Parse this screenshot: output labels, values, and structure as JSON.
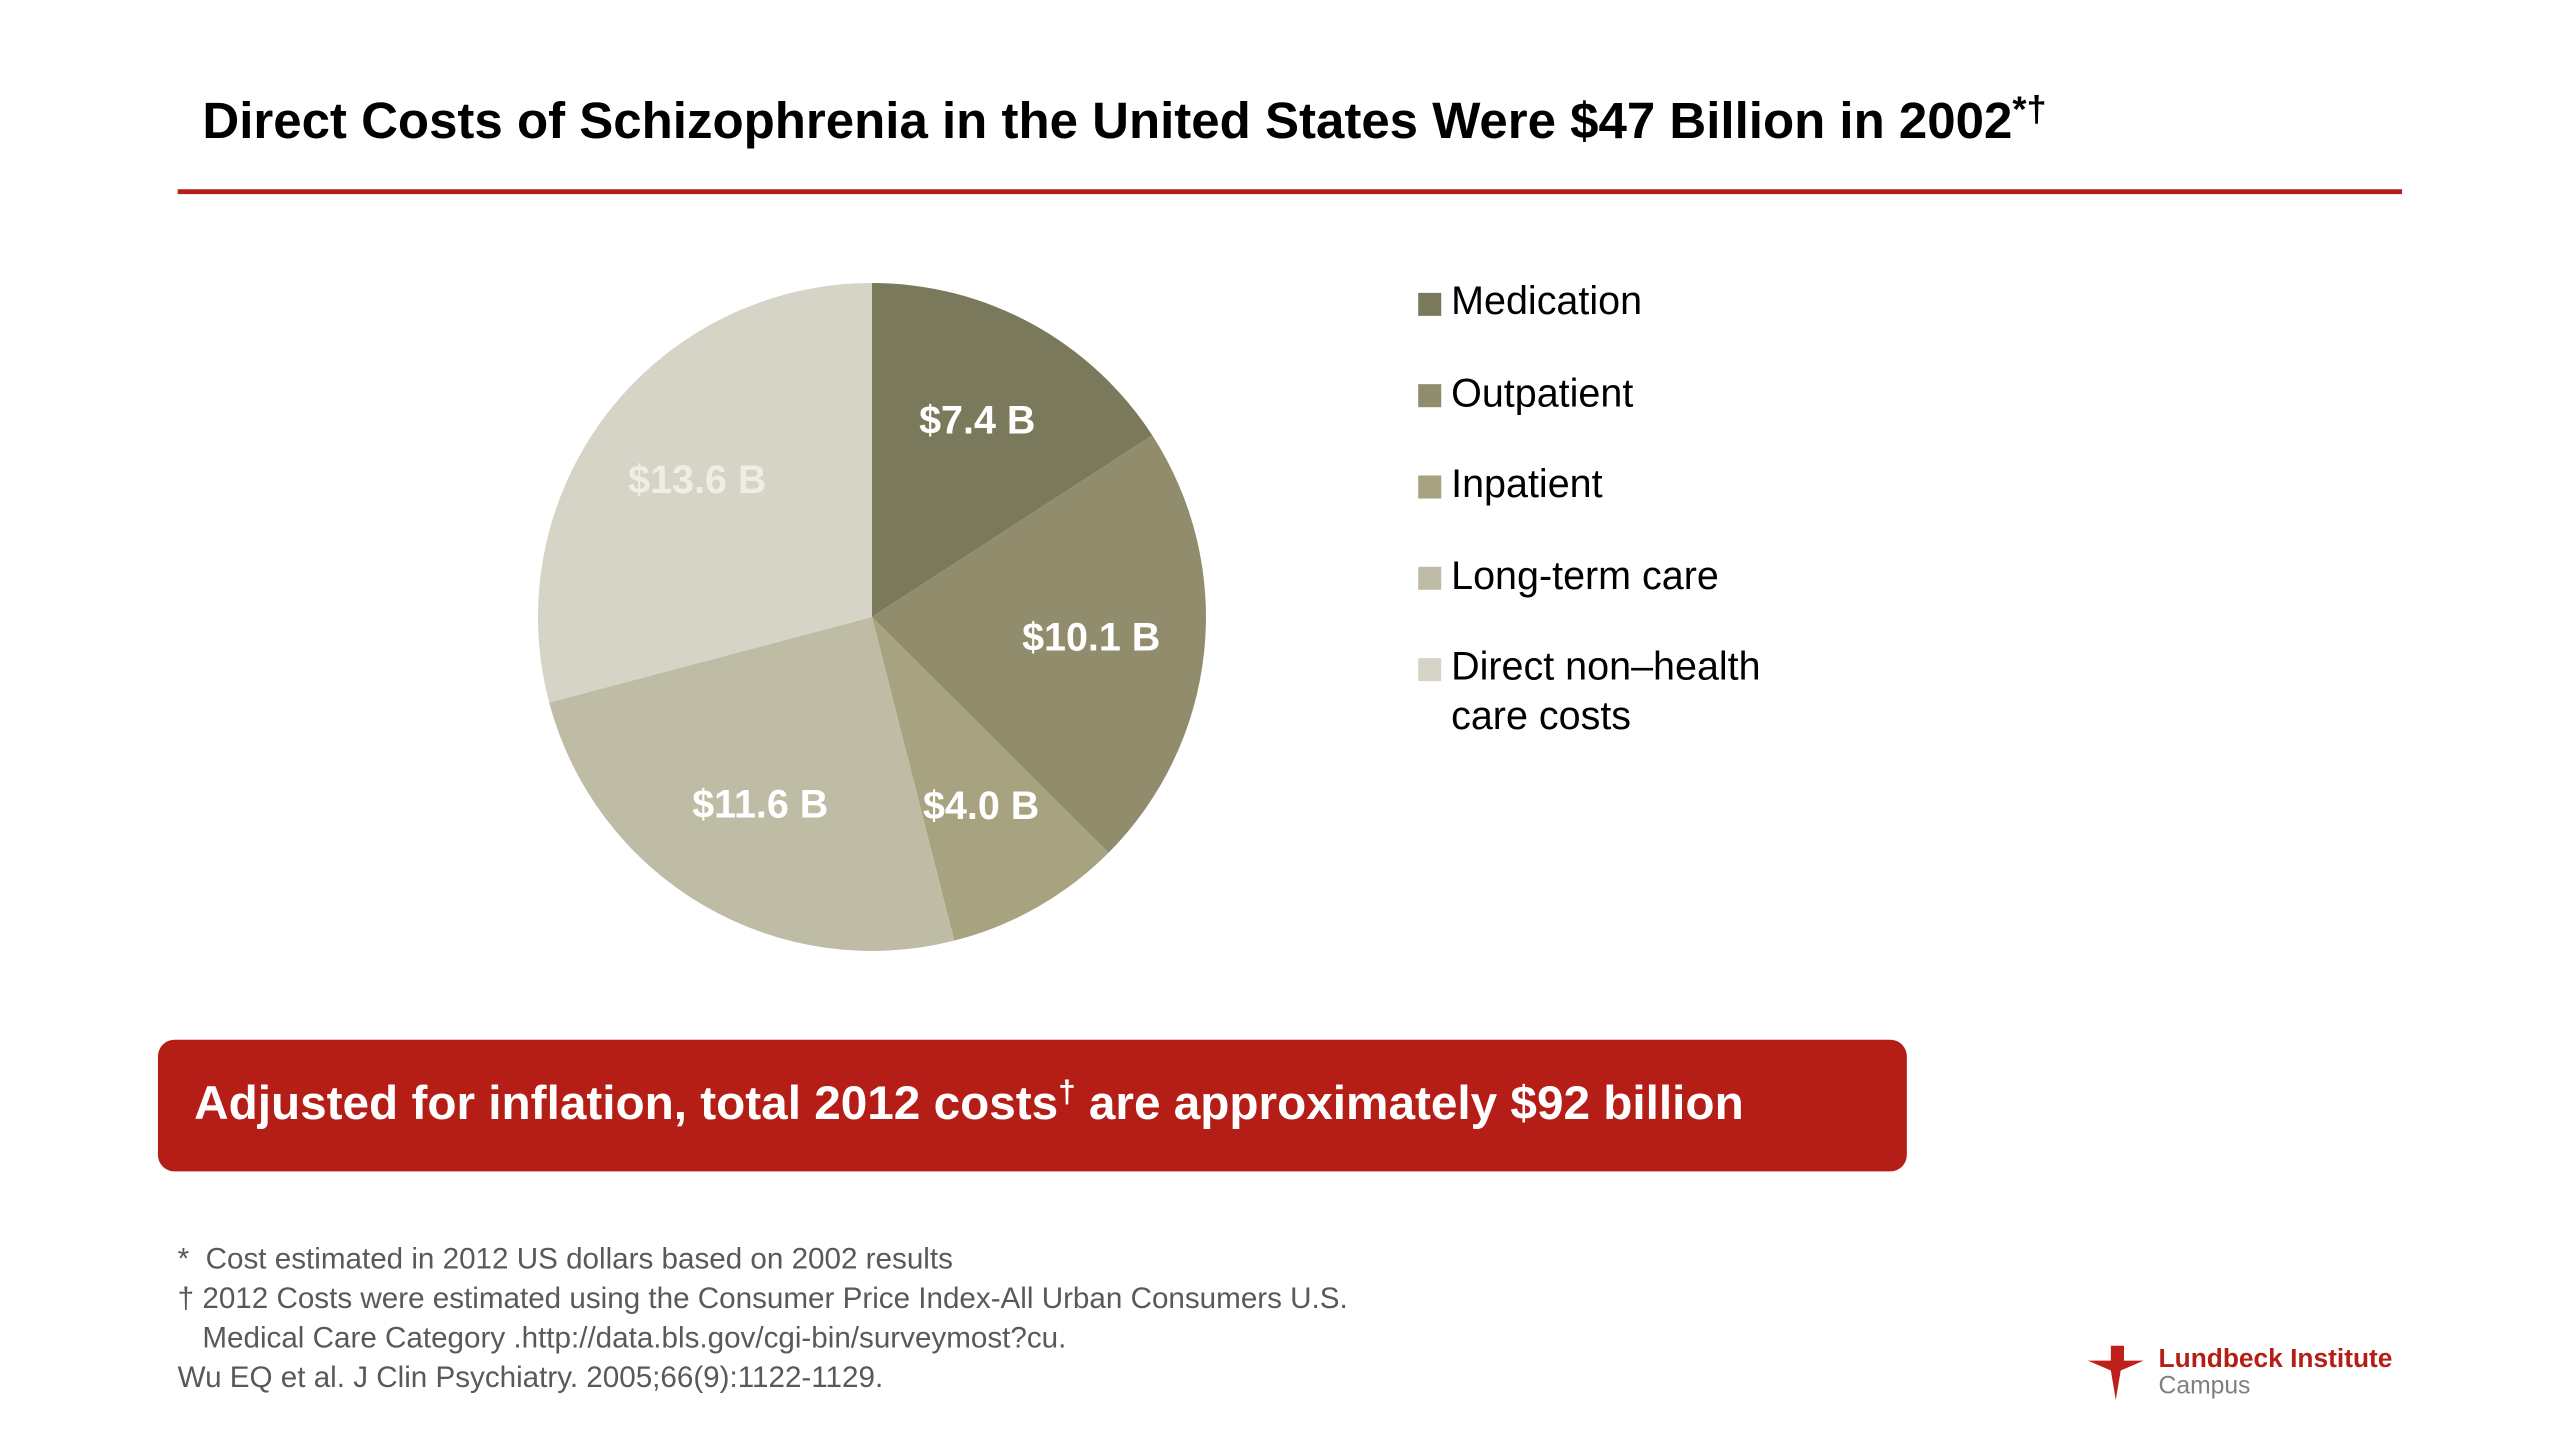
{
  "chart_data": {
    "type": "pie",
    "title": "Direct Costs of Schizophrenia in the United States Were $47 Billion in 2002",
    "title_superscript": "*†",
    "categories": [
      "Medication",
      "Outpatient",
      "Inpatient",
      "Long-term care",
      "Direct non–health care costs"
    ],
    "values": [
      7.4,
      10.1,
      4.0,
      11.6,
      13.6
    ],
    "value_labels": [
      "$7.4 B",
      "$10.1 B",
      "$4.0 B",
      "$11.6 B",
      "$13.6 B"
    ],
    "colors": [
      "#7b795b",
      "#908c6c",
      "#a7a27f",
      "#bfbca6",
      "#d6d4c6"
    ],
    "label_colors": [
      "#ffffff",
      "#ffffff",
      "#ffffff",
      "#ffffff",
      "#efede6"
    ],
    "legend": "right"
  },
  "callout": {
    "text_before": "Adjusted for inflation, total 2012 costs",
    "superscript": "†",
    "text_after": " are approximately $92 billion"
  },
  "footnotes": [
    "*  Cost estimated in 2012 US dollars based on 2002 results",
    "† 2012 Costs were estimated using the Consumer Price Index-All Urban Consumers U.S.",
    "Medical Care Category .http://data.bls.gov/cgi-bin/surveymost?cu.",
    "Wu EQ et al. J Clin Psychiatry. 2005;66(9):1122-1129."
  ],
  "logo": {
    "name": "Lundbeck Institute",
    "subtitle": "Campus"
  }
}
